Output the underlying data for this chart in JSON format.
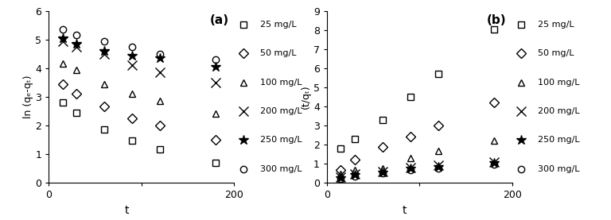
{
  "panel_a": {
    "title": "(a)",
    "xlabel": "t",
    "ylabel": "ln (qₑ-qₜ)",
    "xlim": [
      0,
      200
    ],
    "ylim": [
      0,
      6
    ],
    "xticks": [
      0,
      100,
      200
    ],
    "yticks": [
      0,
      1,
      2,
      3,
      4,
      5,
      6
    ],
    "series": {
      "25 mg/L": {
        "t": [
          15,
          30,
          60,
          90,
          120,
          180
        ],
        "y": [
          2.8,
          2.45,
          1.85,
          1.48,
          1.15,
          0.7
        ],
        "marker": "s"
      },
      "50 mg/L": {
        "t": [
          15,
          30,
          60,
          90,
          120,
          180
        ],
        "y": [
          3.45,
          3.1,
          2.65,
          2.25,
          2.0,
          1.5
        ],
        "marker": "D"
      },
      "100 mg/L": {
        "t": [
          15,
          30,
          60,
          90,
          120,
          180
        ],
        "y": [
          4.15,
          3.95,
          3.45,
          3.1,
          2.85,
          2.4
        ],
        "marker": "^"
      },
      "200 mg/L": {
        "t": [
          15,
          30,
          60,
          90,
          120,
          180
        ],
        "y": [
          4.95,
          4.75,
          4.5,
          4.1,
          3.85,
          3.5
        ],
        "marker": "x"
      },
      "250 mg/L": {
        "t": [
          15,
          30,
          60,
          90,
          120,
          180
        ],
        "y": [
          5.05,
          4.85,
          4.6,
          4.45,
          4.35,
          4.05
        ],
        "marker": "*"
      },
      "300 mg/L": {
        "t": [
          15,
          30,
          60,
          90,
          120,
          180
        ],
        "y": [
          5.35,
          5.15,
          4.95,
          4.75,
          4.5,
          4.3
        ],
        "marker": "o"
      }
    }
  },
  "panel_b": {
    "title": "(b)",
    "xlabel": "t",
    "ylabel": "(t/qₜ)",
    "xlim": [
      0,
      200
    ],
    "ylim": [
      0,
      9
    ],
    "xticks": [
      0,
      100,
      200
    ],
    "yticks": [
      0,
      1,
      2,
      3,
      4,
      5,
      6,
      7,
      8,
      9
    ],
    "series": {
      "25 mg/L": {
        "t": [
          15,
          30,
          60,
          90,
          120,
          180
        ],
        "y": [
          1.8,
          2.3,
          3.3,
          4.5,
          5.7,
          8.05
        ],
        "marker": "s"
      },
      "50 mg/L": {
        "t": [
          15,
          30,
          60,
          90,
          120,
          180
        ],
        "y": [
          0.65,
          1.2,
          1.85,
          2.4,
          3.0,
          4.2
        ],
        "marker": "D"
      },
      "100 mg/L": {
        "t": [
          15,
          30,
          60,
          90,
          120,
          180
        ],
        "y": [
          0.45,
          0.65,
          0.75,
          1.3,
          1.65,
          2.2
        ],
        "marker": "^"
      },
      "200 mg/L": {
        "t": [
          15,
          30,
          60,
          90,
          120,
          180
        ],
        "y": [
          0.3,
          0.45,
          0.6,
          0.8,
          0.9,
          1.1
        ],
        "marker": "x"
      },
      "250 mg/L": {
        "t": [
          15,
          30,
          60,
          90,
          120,
          180
        ],
        "y": [
          0.25,
          0.4,
          0.55,
          0.75,
          0.85,
          1.05
        ],
        "marker": "*"
      },
      "300 mg/L": {
        "t": [
          15,
          30,
          60,
          90,
          120,
          180
        ],
        "y": [
          0.2,
          0.35,
          0.5,
          0.65,
          0.75,
          0.95
        ],
        "marker": "o"
      }
    }
  },
  "legend_labels": [
    "25 mg/L",
    "50 mg/L",
    "100 mg/L",
    "200 mg/L",
    "250 mg/L",
    "300 mg/L"
  ],
  "markers": [
    "s",
    "D",
    "^",
    "x",
    "*",
    "o"
  ],
  "color": "black"
}
